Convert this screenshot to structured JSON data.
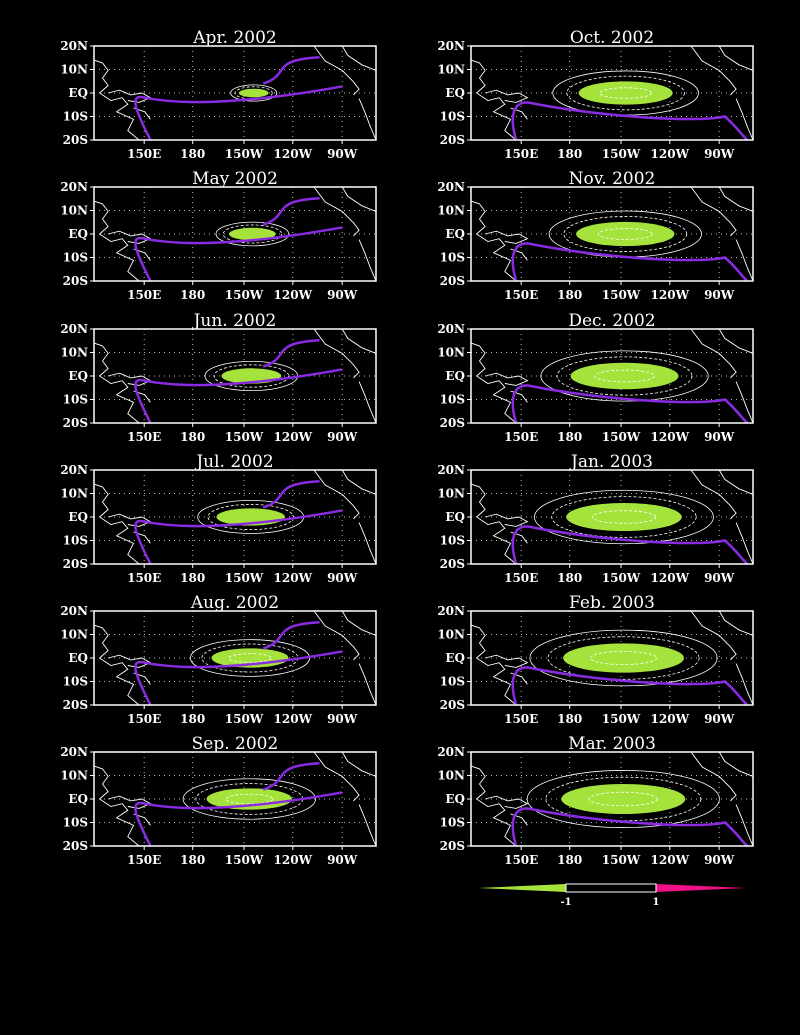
{
  "map": {
    "lat_labels": [
      "20N",
      "10N",
      "EQ",
      "10S",
      "20S"
    ],
    "lon_labels": [
      "150E",
      "180",
      "150W",
      "120W",
      "90W"
    ],
    "colors": {
      "background": "#000000",
      "frame": "#ffffff",
      "negative_fill": "#a6e23c",
      "positive_fill": "#ee1188",
      "thick_contour": "#8a2be2",
      "thin_contour": "#ffffff"
    },
    "panels": [
      {
        "title": "Apr. 2002",
        "amp": 0.12
      },
      {
        "title": "Oct. 2002",
        "amp": 0.72
      },
      {
        "title": "May 2002",
        "amp": 0.28
      },
      {
        "title": "Nov. 2002",
        "amp": 0.76
      },
      {
        "title": "Jun. 2002",
        "amp": 0.4
      },
      {
        "title": "Dec. 2002",
        "amp": 0.85
      },
      {
        "title": "Jul. 2002",
        "amp": 0.48
      },
      {
        "title": "Jan. 2003",
        "amp": 0.92
      },
      {
        "title": "Aug. 2002",
        "amp": 0.56
      },
      {
        "title": "Feb. 2003",
        "amp": 0.97
      },
      {
        "title": "Sep. 2002",
        "amp": 0.64
      },
      {
        "title": "Mar. 2003",
        "amp": 1.0
      }
    ]
  },
  "colorbar": {
    "labels": [
      "-1",
      "1"
    ]
  }
}
